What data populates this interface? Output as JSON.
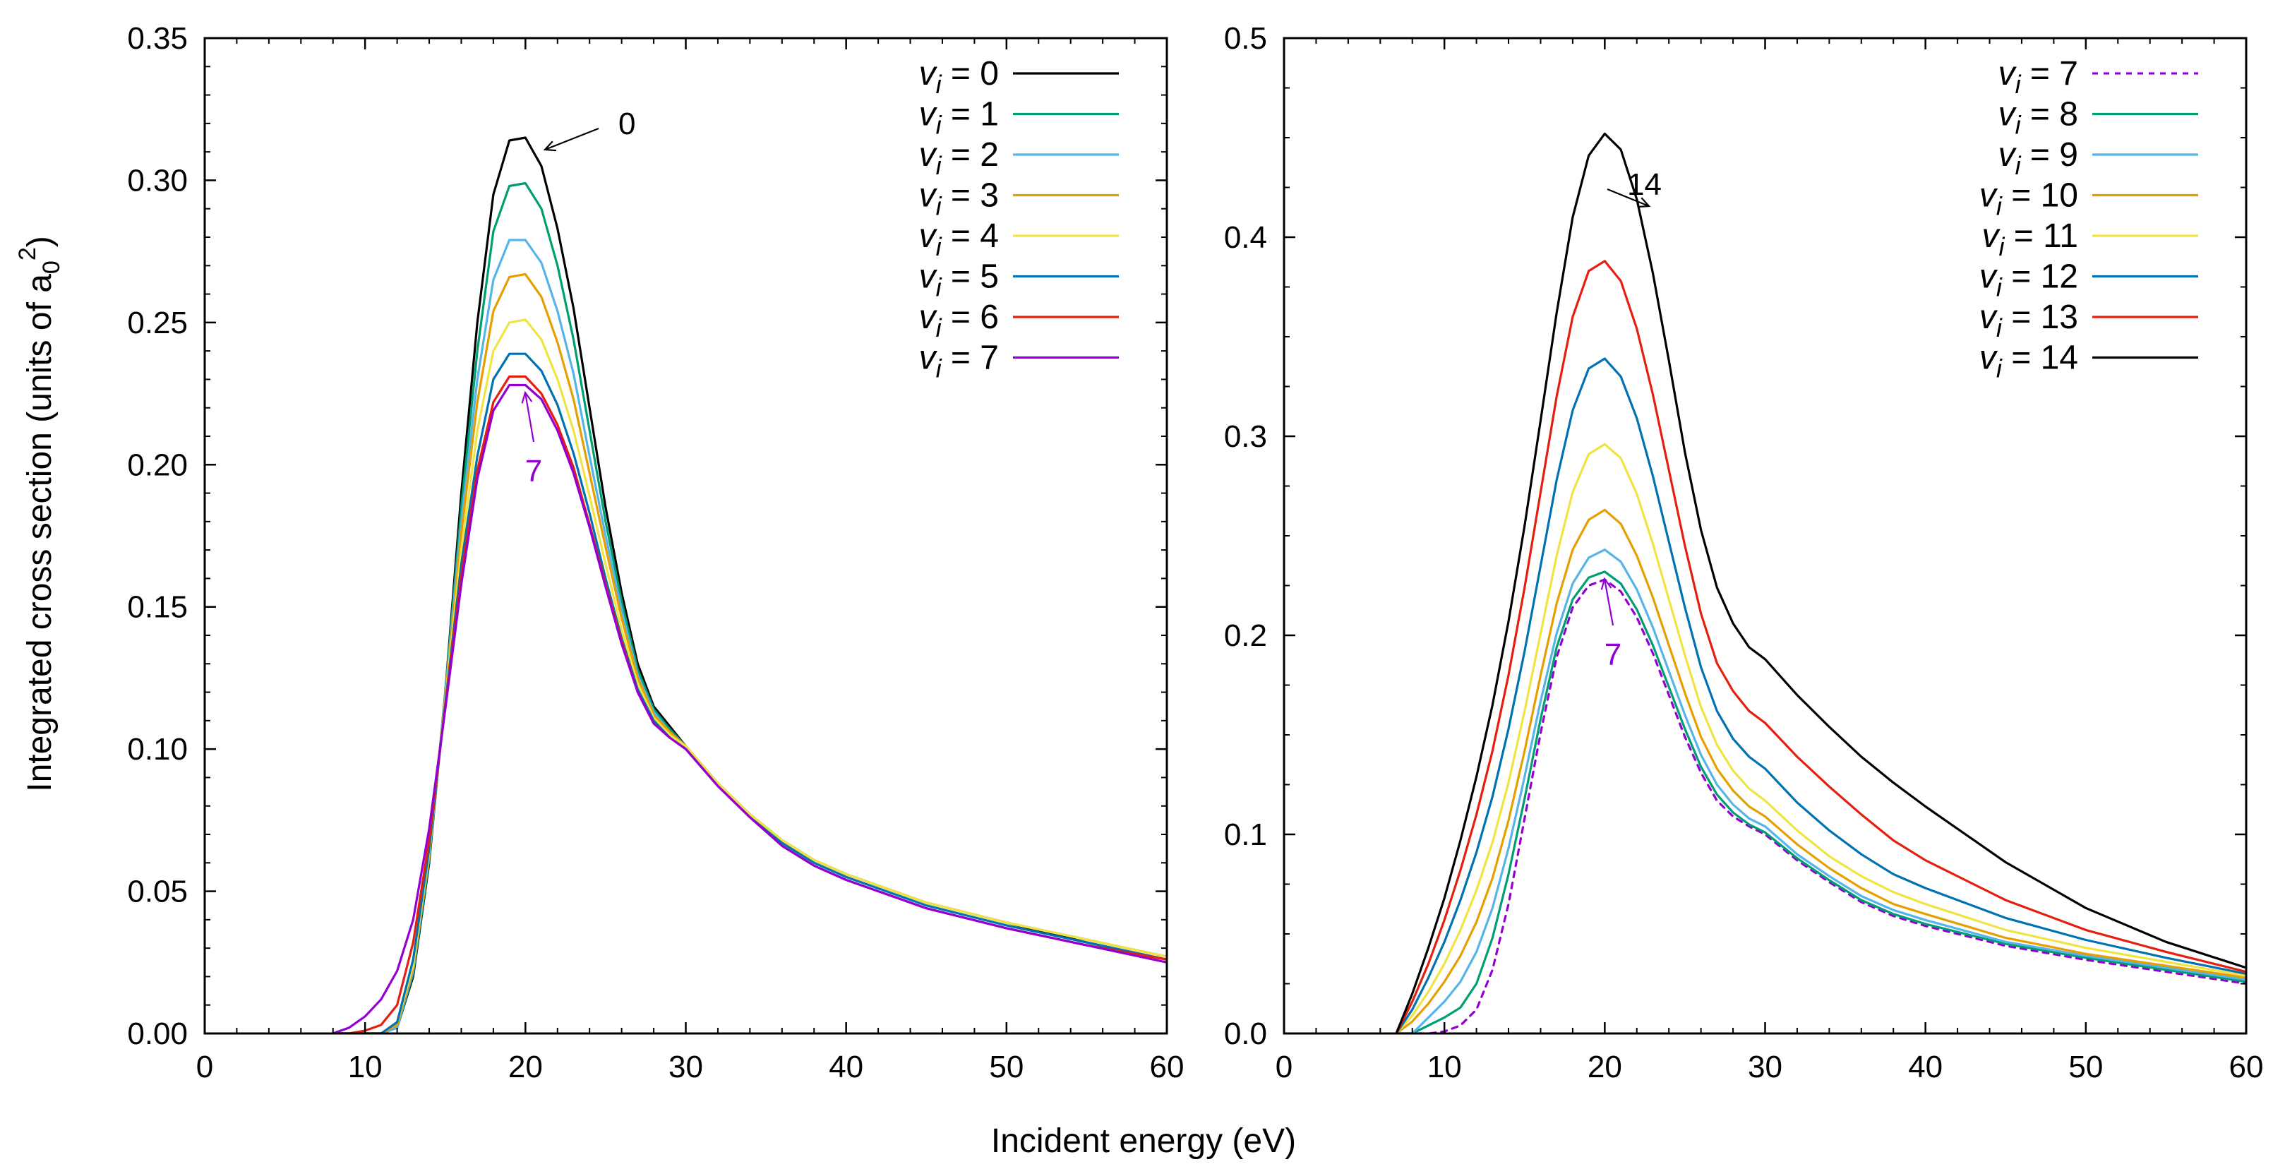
{
  "figure": {
    "xlabel": "Incident energy (eV)",
    "ylabel": "Integrated cross section (units of a0²)",
    "ylabel_main": "Integrated cross section (units of a",
    "ylabel_sub": "0",
    "ylabel_sup": "2",
    "ylabel_close": ")",
    "legend_var": "v",
    "legend_sub": "i",
    "legend_eq": " = "
  },
  "chart_data": [
    {
      "id": "left",
      "type": "line",
      "title": "",
      "xlabel": "Incident energy (eV)",
      "ylabel": "Integrated cross section (units of a0²)",
      "xlim": [
        0,
        60
      ],
      "ylim": [
        0,
        0.35
      ],
      "xticks": [
        0,
        10,
        20,
        30,
        40,
        50,
        60
      ],
      "yticks": [
        0,
        0.05,
        0.1,
        0.15,
        0.2,
        0.25,
        0.3,
        0.35
      ],
      "ytick_labels": [
        "0.00",
        "0.05",
        "0.10",
        "0.15",
        "0.20",
        "0.25",
        "0.30",
        "0.35"
      ],
      "xtick_labels": [
        "0",
        "10",
        "20",
        "30",
        "40",
        "50",
        "60"
      ],
      "legend_position": "top-right",
      "annotations": [
        {
          "text": "0",
          "x": 21.0,
          "y": 0.31,
          "color": "#000000"
        },
        {
          "text": "7",
          "x": 20.0,
          "y": 0.227,
          "color": "#9400d3"
        }
      ],
      "x": [
        8,
        9,
        10,
        11,
        12,
        13,
        14,
        15,
        16,
        17,
        18,
        19,
        20,
        21,
        22,
        23,
        24,
        25,
        26,
        27,
        28,
        29,
        30,
        32,
        34,
        36,
        38,
        40,
        45,
        50,
        55,
        60
      ],
      "series": [
        {
          "name": "0",
          "color": "#000000",
          "dash": false,
          "values": [
            0,
            0,
            0,
            0,
            0.002,
            0.02,
            0.06,
            0.12,
            0.19,
            0.25,
            0.295,
            0.314,
            0.315,
            0.305,
            0.283,
            0.255,
            0.22,
            0.185,
            0.155,
            0.13,
            0.115,
            0.108,
            0.101,
            0.088,
            0.077,
            0.068,
            0.061,
            0.056,
            0.046,
            0.039,
            0.032,
            0.026
          ]
        },
        {
          "name": "1",
          "color": "#009e73",
          "dash": false,
          "values": [
            0,
            0,
            0,
            0,
            0.002,
            0.021,
            0.061,
            0.12,
            0.185,
            0.24,
            0.282,
            0.298,
            0.299,
            0.29,
            0.27,
            0.244,
            0.212,
            0.18,
            0.152,
            0.128,
            0.114,
            0.107,
            0.101,
            0.088,
            0.077,
            0.068,
            0.061,
            0.056,
            0.046,
            0.039,
            0.033,
            0.027
          ]
        },
        {
          "name": "2",
          "color": "#56b4e9",
          "dash": false,
          "values": [
            0,
            0,
            0,
            0,
            0.002,
            0.022,
            0.062,
            0.119,
            0.18,
            0.23,
            0.265,
            0.279,
            0.279,
            0.271,
            0.254,
            0.232,
            0.203,
            0.175,
            0.149,
            0.126,
            0.113,
            0.106,
            0.101,
            0.088,
            0.077,
            0.068,
            0.061,
            0.056,
            0.046,
            0.039,
            0.033,
            0.027
          ]
        },
        {
          "name": "3",
          "color": "#e69f00",
          "dash": false,
          "values": [
            0,
            0,
            0,
            0,
            0.003,
            0.023,
            0.063,
            0.118,
            0.176,
            0.222,
            0.254,
            0.266,
            0.267,
            0.259,
            0.243,
            0.223,
            0.197,
            0.171,
            0.146,
            0.125,
            0.112,
            0.106,
            0.101,
            0.088,
            0.077,
            0.068,
            0.061,
            0.056,
            0.046,
            0.039,
            0.033,
            0.027
          ]
        },
        {
          "name": "4",
          "color": "#f0e442",
          "dash": false,
          "values": [
            0,
            0,
            0,
            0,
            0.004,
            0.024,
            0.064,
            0.117,
            0.17,
            0.212,
            0.24,
            0.25,
            0.251,
            0.244,
            0.23,
            0.212,
            0.189,
            0.165,
            0.142,
            0.123,
            0.111,
            0.105,
            0.101,
            0.088,
            0.077,
            0.068,
            0.061,
            0.056,
            0.046,
            0.039,
            0.033,
            0.027
          ]
        },
        {
          "name": "5",
          "color": "#0072b2",
          "dash": false,
          "values": [
            0,
            0,
            0,
            0,
            0.004,
            0.026,
            0.065,
            0.116,
            0.165,
            0.203,
            0.23,
            0.239,
            0.239,
            0.233,
            0.221,
            0.204,
            0.183,
            0.16,
            0.139,
            0.121,
            0.11,
            0.104,
            0.1,
            0.087,
            0.076,
            0.067,
            0.06,
            0.055,
            0.045,
            0.038,
            0.032,
            0.026
          ]
        },
        {
          "name": "6",
          "color": "#e51e10",
          "dash": false,
          "values": [
            0,
            0,
            0.001,
            0.003,
            0.01,
            0.032,
            0.068,
            0.115,
            0.161,
            0.198,
            0.222,
            0.231,
            0.231,
            0.225,
            0.214,
            0.199,
            0.179,
            0.158,
            0.138,
            0.12,
            0.109,
            0.104,
            0.1,
            0.087,
            0.076,
            0.066,
            0.059,
            0.054,
            0.044,
            0.037,
            0.031,
            0.026
          ]
        },
        {
          "name": "7",
          "color": "#9400d3",
          "dash": false,
          "values": [
            0,
            0.002,
            0.006,
            0.012,
            0.022,
            0.04,
            0.072,
            0.114,
            0.158,
            0.195,
            0.219,
            0.228,
            0.228,
            0.223,
            0.212,
            0.197,
            0.178,
            0.157,
            0.137,
            0.12,
            0.109,
            0.104,
            0.1,
            0.087,
            0.076,
            0.066,
            0.059,
            0.054,
            0.044,
            0.037,
            0.031,
            0.025
          ]
        }
      ]
    },
    {
      "id": "right",
      "type": "line",
      "title": "",
      "xlabel": "Incident energy (eV)",
      "ylabel": "",
      "xlim": [
        0,
        60
      ],
      "ylim": [
        0,
        0.5
      ],
      "xticks": [
        0,
        10,
        20,
        30,
        40,
        50,
        60
      ],
      "yticks": [
        0,
        0.1,
        0.2,
        0.3,
        0.4,
        0.5
      ],
      "ytick_labels": [
        "0.0",
        "0.1",
        "0.2",
        "0.3",
        "0.4",
        "0.5"
      ],
      "xtick_labels": [
        "0",
        "10",
        "20",
        "30",
        "40",
        "50",
        "60"
      ],
      "legend_position": "top-right",
      "annotations": [
        {
          "text": "14",
          "x": 23.0,
          "y": 0.415,
          "color": "#000000"
        },
        {
          "text": "7",
          "x": 20.0,
          "y": 0.227,
          "color": "#9400d3"
        }
      ],
      "x": [
        7,
        8,
        9,
        10,
        11,
        12,
        13,
        14,
        15,
        16,
        17,
        18,
        19,
        20,
        21,
        22,
        23,
        24,
        25,
        26,
        27,
        28,
        29,
        30,
        32,
        34,
        36,
        38,
        40,
        45,
        50,
        55,
        60
      ],
      "series": [
        {
          "name": "7",
          "color": "#9400d3",
          "dash": true,
          "values": [
            0,
            0,
            0,
            0.001,
            0.004,
            0.012,
            0.032,
            0.065,
            0.108,
            0.151,
            0.189,
            0.214,
            0.225,
            0.228,
            0.222,
            0.209,
            0.191,
            0.17,
            0.149,
            0.131,
            0.117,
            0.109,
            0.104,
            0.1,
            0.087,
            0.076,
            0.066,
            0.059,
            0.054,
            0.044,
            0.037,
            0.031,
            0.025
          ]
        },
        {
          "name": "8",
          "color": "#009e73",
          "dash": false,
          "values": [
            0,
            0,
            0.004,
            0.008,
            0.013,
            0.025,
            0.048,
            0.08,
            0.118,
            0.158,
            0.194,
            0.218,
            0.229,
            0.232,
            0.226,
            0.213,
            0.195,
            0.174,
            0.153,
            0.134,
            0.12,
            0.111,
            0.105,
            0.101,
            0.088,
            0.077,
            0.067,
            0.06,
            0.055,
            0.045,
            0.038,
            0.032,
            0.026
          ]
        },
        {
          "name": "9",
          "color": "#56b4e9",
          "dash": false,
          "values": [
            0,
            0,
            0.008,
            0.016,
            0.026,
            0.041,
            0.063,
            0.093,
            0.129,
            0.167,
            0.201,
            0.226,
            0.239,
            0.243,
            0.237,
            0.223,
            0.204,
            0.182,
            0.16,
            0.14,
            0.125,
            0.115,
            0.108,
            0.104,
            0.09,
            0.079,
            0.069,
            0.062,
            0.057,
            0.046,
            0.039,
            0.033,
            0.027
          ]
        },
        {
          "name": "10",
          "color": "#e69f00",
          "dash": false,
          "values": [
            0,
            0.006,
            0.015,
            0.026,
            0.039,
            0.056,
            0.078,
            0.107,
            0.142,
            0.18,
            0.216,
            0.243,
            0.258,
            0.263,
            0.256,
            0.24,
            0.219,
            0.195,
            0.171,
            0.149,
            0.133,
            0.122,
            0.114,
            0.109,
            0.095,
            0.083,
            0.073,
            0.065,
            0.06,
            0.048,
            0.04,
            0.034,
            0.028
          ]
        },
        {
          "name": "11",
          "color": "#f0e442",
          "dash": false,
          "values": [
            0,
            0.009,
            0.021,
            0.035,
            0.052,
            0.072,
            0.096,
            0.126,
            0.162,
            0.201,
            0.24,
            0.272,
            0.291,
            0.296,
            0.289,
            0.271,
            0.246,
            0.218,
            0.19,
            0.164,
            0.145,
            0.132,
            0.123,
            0.117,
            0.102,
            0.089,
            0.079,
            0.071,
            0.065,
            0.052,
            0.043,
            0.036,
            0.029
          ]
        },
        {
          "name": "12",
          "color": "#0072b2",
          "dash": false,
          "values": [
            0,
            0.012,
            0.028,
            0.046,
            0.067,
            0.091,
            0.119,
            0.153,
            0.192,
            0.235,
            0.278,
            0.313,
            0.334,
            0.339,
            0.33,
            0.309,
            0.28,
            0.247,
            0.214,
            0.184,
            0.162,
            0.148,
            0.139,
            0.133,
            0.116,
            0.102,
            0.09,
            0.08,
            0.073,
            0.058,
            0.047,
            0.038,
            0.03
          ]
        },
        {
          "name": "13",
          "color": "#e51e10",
          "dash": false,
          "values": [
            0,
            0.016,
            0.035,
            0.057,
            0.082,
            0.11,
            0.142,
            0.18,
            0.224,
            0.272,
            0.32,
            0.36,
            0.383,
            0.388,
            0.378,
            0.354,
            0.321,
            0.283,
            0.245,
            0.211,
            0.186,
            0.172,
            0.162,
            0.156,
            0.139,
            0.124,
            0.11,
            0.097,
            0.087,
            0.067,
            0.052,
            0.041,
            0.031
          ]
        },
        {
          "name": "14",
          "color": "#000000",
          "dash": false,
          "values": [
            0,
            0.02,
            0.043,
            0.068,
            0.097,
            0.129,
            0.165,
            0.207,
            0.255,
            0.308,
            0.362,
            0.41,
            0.441,
            0.452,
            0.444,
            0.419,
            0.382,
            0.338,
            0.292,
            0.253,
            0.224,
            0.206,
            0.194,
            0.188,
            0.17,
            0.154,
            0.139,
            0.126,
            0.114,
            0.086,
            0.063,
            0.046,
            0.033
          ]
        }
      ]
    }
  ]
}
